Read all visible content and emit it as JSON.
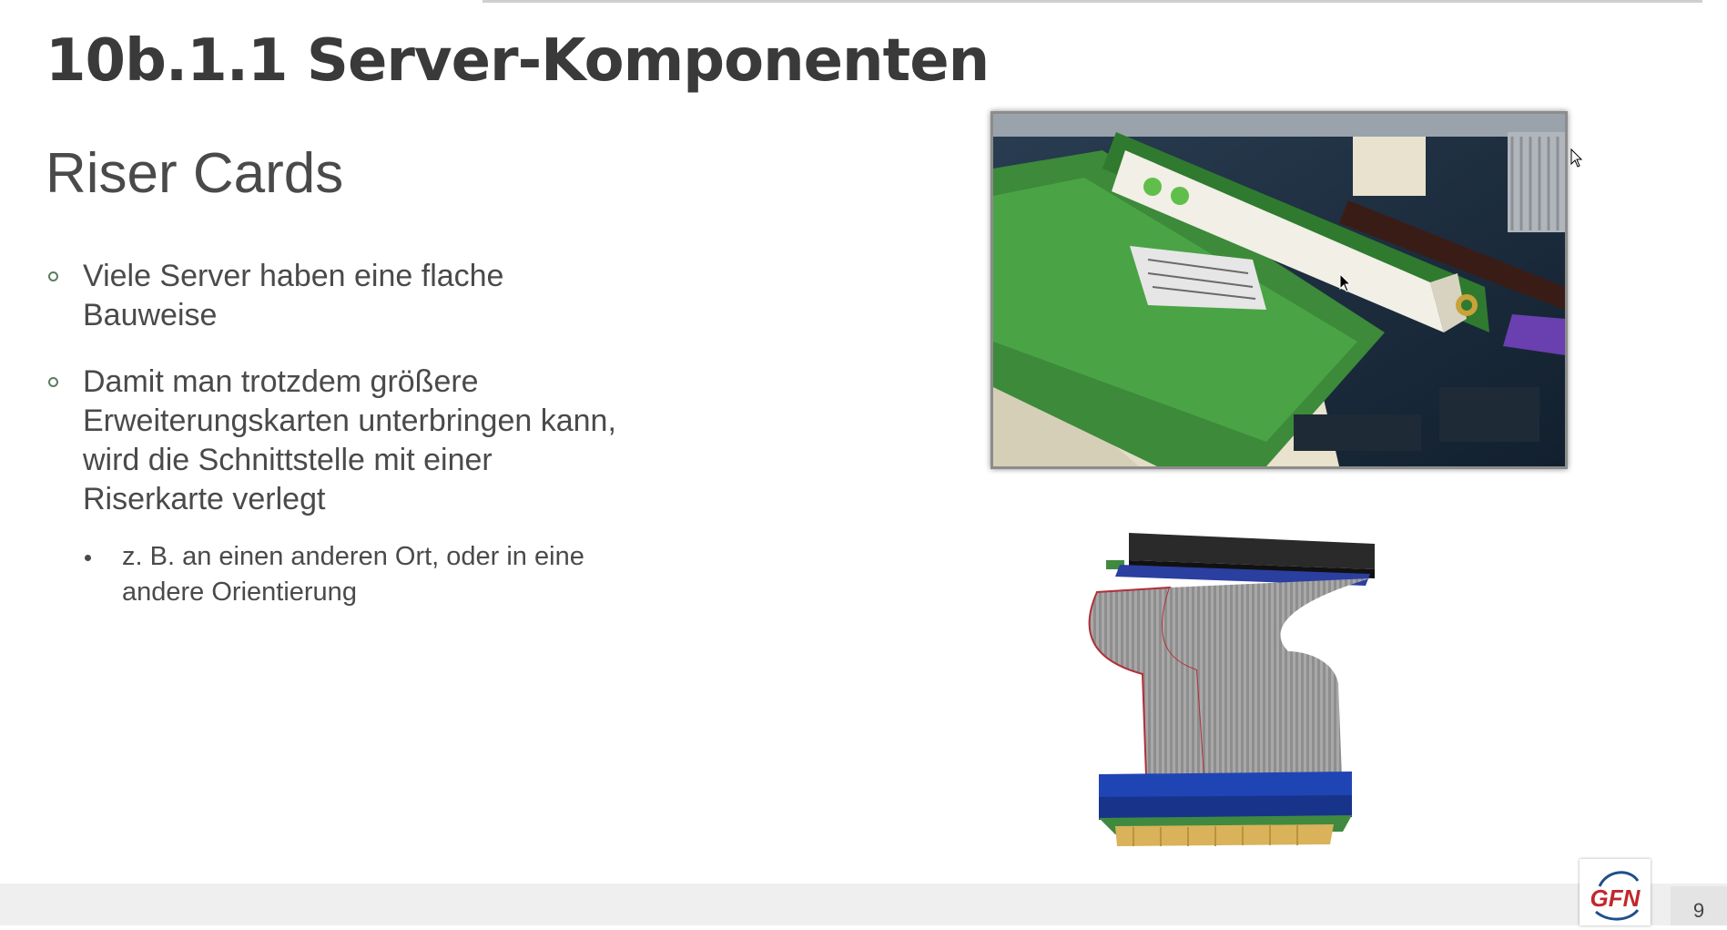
{
  "slide": {
    "title": "10b.1.1 Server-Komponenten",
    "subtitle": "Riser Cards",
    "bullets": [
      "Viele Server haben eine flache Bauweise",
      "Damit man trotzdem größere Erweiterungskarten unterbringen kann, wird die Schnittstelle mit einer Riserkarte verlegt"
    ],
    "sub_bullet": "z. B. an einen anderen Ort, oder in eine andere Orientierung",
    "page_number": "9"
  },
  "logo": {
    "text": "GFN"
  },
  "colors": {
    "title": "#3a3a3a",
    "text": "#4a4a4a",
    "bullet_circle": "#5a7d5f",
    "logo_red": "#c0272d",
    "logo_blue": "#1f4f8b"
  },
  "icons": [
    "mouse-pointer-icon"
  ]
}
